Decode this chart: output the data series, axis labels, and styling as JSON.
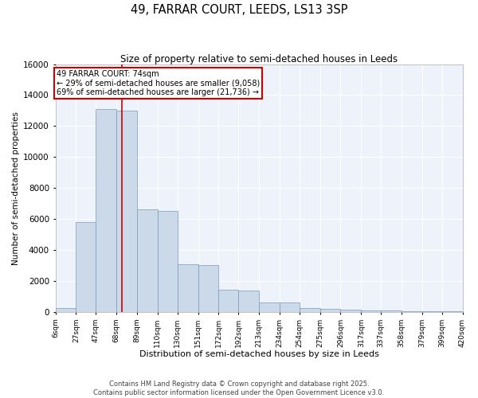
{
  "title": "49, FARRAR COURT, LEEDS, LS13 3SP",
  "subtitle": "Size of property relative to semi-detached houses in Leeds",
  "xlabel": "Distribution of semi-detached houses by size in Leeds",
  "ylabel": "Number of semi-detached properties",
  "bin_edges": [
    6,
    27,
    47,
    68,
    89,
    110,
    130,
    151,
    172,
    192,
    213,
    234,
    254,
    275,
    296,
    317,
    337,
    358,
    379,
    399,
    420
  ],
  "bar_heights": [
    250,
    5800,
    13100,
    13000,
    6600,
    6500,
    3050,
    3000,
    1450,
    1400,
    620,
    600,
    250,
    200,
    150,
    100,
    80,
    60,
    50,
    50
  ],
  "tick_labels": [
    "6sqm",
    "27sqm",
    "47sqm",
    "68sqm",
    "89sqm",
    "110sqm",
    "130sqm",
    "151sqm",
    "172sqm",
    "192sqm",
    "213sqm",
    "234sqm",
    "254sqm",
    "275sqm",
    "296sqm",
    "317sqm",
    "337sqm",
    "358sqm",
    "379sqm",
    "399sqm",
    "420sqm"
  ],
  "property_size": 74,
  "property_label": "49 FARRAR COURT: 74sqm",
  "pct_smaller": 29,
  "pct_larger": 69,
  "n_smaller": 9058,
  "n_larger": 21736,
  "bar_color": "#ccd9e8",
  "bar_edge_color": "#7799bb",
  "vline_color": "#cc0000",
  "annotation_box_color": "#cc0000",
  "background_color": "#eef2fa",
  "grid_color": "#ffffff",
  "ylim": [
    0,
    16000
  ],
  "yticks": [
    0,
    2000,
    4000,
    6000,
    8000,
    10000,
    12000,
    14000,
    16000
  ],
  "footnote1": "Contains HM Land Registry data © Crown copyright and database right 2025.",
  "footnote2": "Contains public sector information licensed under the Open Government Licence v3.0."
}
